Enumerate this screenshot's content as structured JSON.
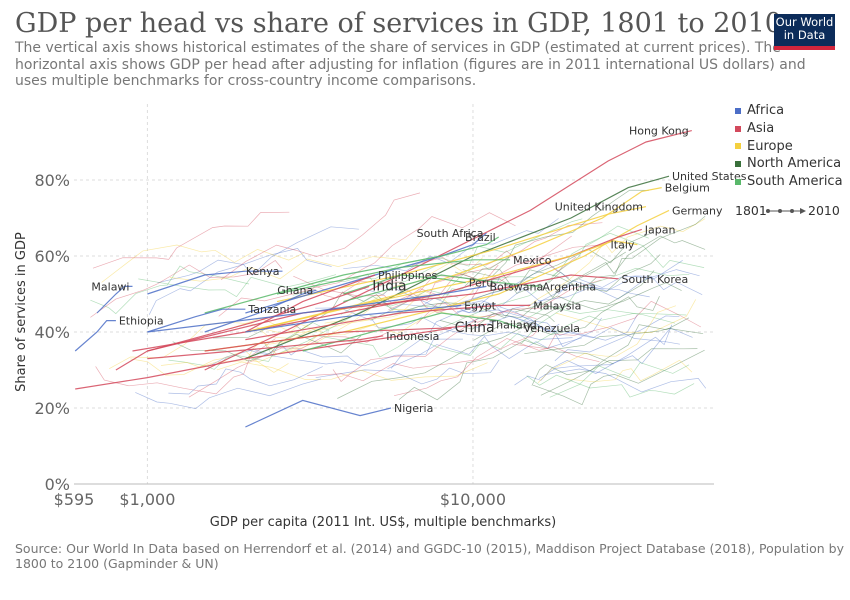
{
  "header": {
    "title": "GDP per head vs share of services in GDP, 1801 to 2010",
    "subtitle": "The vertical axis shows historical estimates of the share of services in GDP (estimated at current prices). The horizontal axis shows GDP per head after adjusting for inflation (figures are in 2011 international US dollars) and uses multiple benchmarks for cross-country income comparisons.",
    "logo_line1": "Our World",
    "logo_line2": "in Data"
  },
  "source": "Source: Our World In Data based on Herrendorf et al. (2014) and GGDC-10 (2015), Maddison Project Database (2018), Population by 1800 to 2100 (Gapminder & UN)",
  "timeline": {
    "start": "1801",
    "end": "2010"
  },
  "chart_data": {
    "type": "scatter",
    "connected": true,
    "x_scale": "log",
    "xlabel": "GDP per capita (2011 Int. US$, multiple benchmarks)",
    "ylabel": "Share of services in GDP",
    "xlim": [
      595,
      55000
    ],
    "ylim": [
      0,
      100
    ],
    "x_ticks": [
      {
        "value": 595,
        "label": "$595"
      },
      {
        "value": 1000,
        "label": "$1,000"
      },
      {
        "value": 10000,
        "label": "$10,000"
      }
    ],
    "y_ticks": [
      {
        "value": 0,
        "label": "0%"
      },
      {
        "value": 20,
        "label": "20%"
      },
      {
        "value": 40,
        "label": "40%"
      },
      {
        "value": 60,
        "label": "60%"
      },
      {
        "value": 80,
        "label": "80%"
      }
    ],
    "grid": true,
    "legend_position": "right",
    "legend": [
      {
        "name": "Africa",
        "color": "#4c6ec7"
      },
      {
        "name": "Asia",
        "color": "#d3495c"
      },
      {
        "name": "Europe",
        "color": "#f4d03f"
      },
      {
        "name": "North America",
        "color": "#39703b"
      },
      {
        "name": "South America",
        "color": "#59b86a"
      }
    ],
    "series": [
      {
        "name": "Hong Kong",
        "region": "Asia",
        "label_pos": "left",
        "label_size": "normal",
        "points": [
          [
            1500,
            30
          ],
          [
            6000,
            55
          ],
          [
            15000,
            72
          ],
          [
            26000,
            85
          ],
          [
            34000,
            90
          ],
          [
            47000,
            93
          ]
        ]
      },
      {
        "name": "United States",
        "region": "North America",
        "label_pos": "right",
        "label_size": "normal",
        "points": [
          [
            2000,
            33
          ],
          [
            4500,
            45
          ],
          [
            10000,
            60
          ],
          [
            20000,
            70
          ],
          [
            30000,
            78
          ],
          [
            40000,
            81
          ]
        ]
      },
      {
        "name": "Belgium",
        "region": "Europe",
        "label_pos": "right",
        "label_size": "normal",
        "points": [
          [
            2000,
            40
          ],
          [
            6000,
            50
          ],
          [
            15000,
            62
          ],
          [
            25000,
            70
          ],
          [
            33000,
            77
          ],
          [
            38000,
            78
          ]
        ]
      },
      {
        "name": "Germany",
        "region": "Europe",
        "label_pos": "right",
        "label_size": "normal",
        "points": [
          [
            1500,
            35
          ],
          [
            4000,
            40
          ],
          [
            12000,
            50
          ],
          [
            22000,
            60
          ],
          [
            32000,
            68
          ],
          [
            40000,
            72
          ]
        ]
      },
      {
        "name": "United Kingdom",
        "region": "Europe",
        "label_pos": "left",
        "label_size": "normal",
        "points": [
          [
            2500,
            48
          ],
          [
            6000,
            55
          ],
          [
            12000,
            62
          ],
          [
            20000,
            68
          ],
          [
            26000,
            71
          ],
          [
            34000,
            73
          ]
        ]
      },
      {
        "name": "Japan",
        "region": "Asia",
        "label_pos": "right",
        "label_size": "normal",
        "points": [
          [
            900,
            35
          ],
          [
            2000,
            40
          ],
          [
            8000,
            50
          ],
          [
            20000,
            60
          ],
          [
            28000,
            65
          ],
          [
            33000,
            67
          ]
        ]
      },
      {
        "name": "Italy",
        "region": "Europe",
        "label_pos": "left",
        "label_size": "normal",
        "points": [
          [
            2000,
            40
          ],
          [
            5000,
            48
          ],
          [
            12000,
            55
          ],
          [
            20000,
            60
          ],
          [
            27000,
            64
          ],
          [
            32000,
            63
          ]
        ]
      },
      {
        "name": "South Africa",
        "region": "Africa",
        "label_pos": "left",
        "label_size": "normal",
        "points": [
          [
            2000,
            45
          ],
          [
            5000,
            55
          ],
          [
            8000,
            60
          ],
          [
            10000,
            63
          ],
          [
            11000,
            66
          ]
        ]
      },
      {
        "name": "Brazil",
        "region": "South America",
        "label_pos": "left",
        "label_size": "normal",
        "points": [
          [
            1500,
            45
          ],
          [
            4000,
            55
          ],
          [
            8000,
            60
          ],
          [
            11000,
            63
          ],
          [
            12000,
            65
          ]
        ]
      },
      {
        "name": "Mexico",
        "region": "South America",
        "label_pos": "right",
        "label_size": "normal",
        "points": [
          [
            2500,
            50
          ],
          [
            6000,
            57
          ],
          [
            10000,
            59
          ],
          [
            13000,
            59
          ]
        ]
      },
      {
        "name": "Argentina",
        "region": "South America",
        "label_pos": "right",
        "label_size": "normal",
        "points": [
          [
            4000,
            48
          ],
          [
            8000,
            55
          ],
          [
            12000,
            53
          ],
          [
            16000,
            52
          ]
        ]
      },
      {
        "name": "South Korea",
        "region": "Asia",
        "label_pos": "right",
        "label_size": "normal",
        "points": [
          [
            1000,
            35
          ],
          [
            3000,
            45
          ],
          [
            10000,
            50
          ],
          [
            20000,
            55
          ],
          [
            28000,
            54
          ]
        ]
      },
      {
        "name": "Kenya",
        "region": "Africa",
        "label_pos": "left",
        "label_size": "normal",
        "points": [
          [
            1000,
            50
          ],
          [
            1500,
            55
          ],
          [
            2000,
            56
          ],
          [
            2600,
            56
          ]
        ]
      },
      {
        "name": "Philippines",
        "region": "Asia",
        "label_pos": "right",
        "label_size": "normal",
        "points": [
          [
            2000,
            40
          ],
          [
            3000,
            48
          ],
          [
            4000,
            52
          ],
          [
            5000,
            55
          ]
        ]
      },
      {
        "name": "Peru",
        "region": "South America",
        "label_pos": "right",
        "label_size": "normal",
        "points": [
          [
            4000,
            50
          ],
          [
            6000,
            55
          ],
          [
            8000,
            54
          ],
          [
            9500,
            53
          ]
        ]
      },
      {
        "name": "Malawi",
        "region": "Africa",
        "label_pos": "left",
        "label_size": "normal",
        "points": [
          [
            700,
            45
          ],
          [
            800,
            50
          ],
          [
            850,
            52
          ],
          [
            900,
            52
          ]
        ]
      },
      {
        "name": "Ghana",
        "region": "Africa",
        "label_pos": "left",
        "label_size": "normal",
        "points": [
          [
            1500,
            40
          ],
          [
            2200,
            45
          ],
          [
            3000,
            50
          ],
          [
            3300,
            51
          ]
        ]
      },
      {
        "name": "India",
        "region": "Asia",
        "label_pos": "right",
        "label_size": "large",
        "points": [
          [
            800,
            30
          ],
          [
            1000,
            35
          ],
          [
            2000,
            42
          ],
          [
            3500,
            48
          ],
          [
            4800,
            52
          ]
        ]
      },
      {
        "name": "Botswana",
        "region": "Africa",
        "label_pos": "right",
        "label_size": "normal",
        "points": [
          [
            1000,
            40
          ],
          [
            3000,
            45
          ],
          [
            8000,
            50
          ],
          [
            11000,
            52
          ]
        ]
      },
      {
        "name": "Tanzania",
        "region": "Africa",
        "label_pos": "right",
        "label_size": "normal",
        "points": [
          [
            1000,
            40
          ],
          [
            1400,
            44
          ],
          [
            1700,
            46
          ],
          [
            2000,
            46
          ]
        ]
      },
      {
        "name": "Egypt",
        "region": "Africa",
        "label_pos": "right",
        "label_size": "normal",
        "points": [
          [
            2000,
            40
          ],
          [
            4000,
            44
          ],
          [
            7000,
            46
          ],
          [
            9200,
            47
          ]
        ]
      },
      {
        "name": "Malaysia",
        "region": "Asia",
        "label_pos": "right",
        "label_size": "normal",
        "points": [
          [
            2000,
            38
          ],
          [
            6000,
            45
          ],
          [
            12000,
            47
          ],
          [
            15000,
            47
          ]
        ]
      },
      {
        "name": "Ethiopia",
        "region": "Africa",
        "label_pos": "right",
        "label_size": "normal",
        "points": [
          [
            600,
            35
          ],
          [
            700,
            40
          ],
          [
            750,
            43
          ],
          [
            800,
            43
          ]
        ]
      },
      {
        "name": "Thailand",
        "region": "Asia",
        "label_pos": "right",
        "label_size": "normal",
        "points": [
          [
            1500,
            35
          ],
          [
            4000,
            40
          ],
          [
            8000,
            41
          ],
          [
            11000,
            42
          ]
        ]
      },
      {
        "name": "China",
        "region": "Asia",
        "label_pos": "right",
        "label_size": "large",
        "points": [
          [
            600,
            25
          ],
          [
            1000,
            28
          ],
          [
            2000,
            33
          ],
          [
            5000,
            38
          ],
          [
            8600,
            41
          ]
        ]
      },
      {
        "name": "Venezuela",
        "region": "South America",
        "label_pos": "right",
        "label_size": "normal",
        "points": [
          [
            3000,
            35
          ],
          [
            8000,
            45
          ],
          [
            12000,
            43
          ],
          [
            14000,
            41
          ]
        ]
      },
      {
        "name": "Indonesia",
        "region": "Asia",
        "label_pos": "right",
        "label_size": "normal",
        "points": [
          [
            1000,
            33
          ],
          [
            2500,
            36
          ],
          [
            4500,
            38
          ],
          [
            5300,
            39
          ]
        ]
      },
      {
        "name": "Nigeria",
        "region": "Africa",
        "label_pos": "right",
        "label_size": "normal",
        "points": [
          [
            2000,
            15
          ],
          [
            3000,
            22
          ],
          [
            4500,
            18
          ],
          [
            5600,
            20
          ]
        ]
      }
    ]
  }
}
